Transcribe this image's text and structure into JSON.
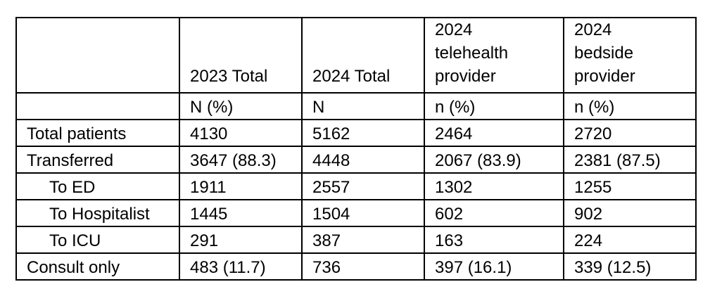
{
  "table": {
    "header": {
      "col0": "",
      "col1": [
        "2023 Total"
      ],
      "col2": [
        "2024 Total"
      ],
      "col3": [
        "2024",
        "telehealth",
        "provider"
      ],
      "col4": [
        "2024",
        "bedside",
        "provider"
      ]
    },
    "units": [
      "",
      "N (%)",
      "N",
      "n (%)",
      "n (%)"
    ],
    "rows": [
      {
        "label": "Total patients",
        "values": [
          "4130",
          "5162",
          "2464",
          "2720"
        ]
      },
      {
        "label": "Transferred",
        "values": [
          "3647 (88.3)",
          "4448",
          "2067 (83.9)",
          "2381 (87.5)"
        ]
      },
      {
        "label": "To ED",
        "values": [
          "1911",
          "2557",
          "1302",
          "1255"
        ]
      },
      {
        "label": "To Hospitalist",
        "values": [
          "1445",
          "1504",
          "602",
          "902"
        ]
      },
      {
        "label": "To ICU",
        "values": [
          "291",
          "387",
          "163",
          "224"
        ]
      },
      {
        "label": "Consult only",
        "values": [
          "483 (11.7)",
          "736",
          "397 (16.1)",
          "339 (12.5)"
        ]
      }
    ]
  }
}
